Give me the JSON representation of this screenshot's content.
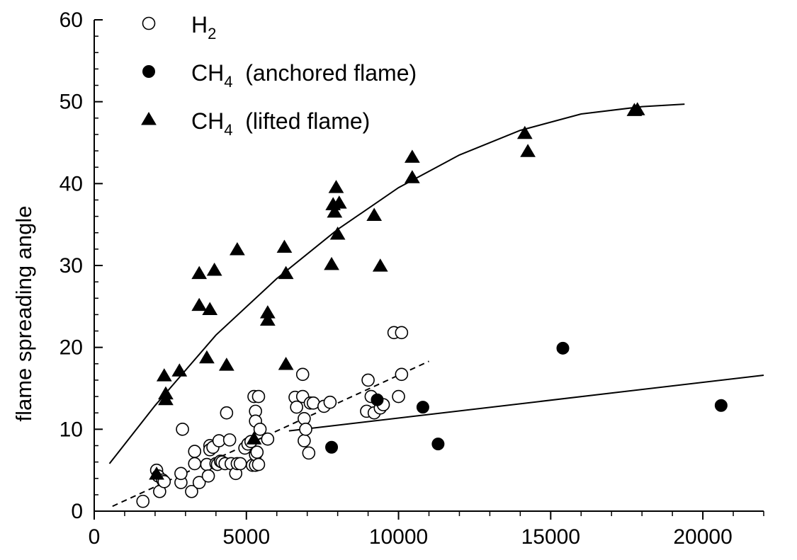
{
  "chart_data": {
    "type": "scatter",
    "title": "",
    "xlabel": "",
    "ylabel": "flame spreading angle",
    "xlim": [
      0,
      22000
    ],
    "ylim": [
      0,
      60
    ],
    "x_ticks": [
      0,
      5000,
      10000,
      15000,
      20000
    ],
    "y_ticks": [
      0,
      10,
      20,
      30,
      40,
      50,
      60
    ],
    "x_tick_labels": [
      "0",
      "5000",
      "10000",
      "15000",
      "20000"
    ],
    "y_tick_labels": [
      "0",
      "10",
      "20",
      "30",
      "40",
      "50",
      "60"
    ],
    "grid": false,
    "legend_position": "top-left",
    "legend": [
      {
        "main": "H",
        "sub": "2",
        "suffix": "",
        "marker": "open-circle"
      },
      {
        "main": "CH",
        "sub": "4",
        "suffix": " (anchored flame)",
        "marker": "filled-circle"
      },
      {
        "main": "CH",
        "sub": "4",
        "suffix": " (lifted flame)",
        "marker": "filled-triangle"
      }
    ],
    "series": [
      {
        "name": "H2",
        "marker": "open-circle",
        "points": [
          [
            1600,
            1.2
          ],
          [
            2050,
            5.0
          ],
          [
            2100,
            4.3
          ],
          [
            2150,
            2.4
          ],
          [
            2250,
            3.8
          ],
          [
            2300,
            3.6
          ],
          [
            2850,
            3.5
          ],
          [
            2850,
            4.6
          ],
          [
            2900,
            10.0
          ],
          [
            3200,
            2.4
          ],
          [
            3300,
            5.8
          ],
          [
            3300,
            7.3
          ],
          [
            3450,
            3.5
          ],
          [
            3700,
            5.7
          ],
          [
            3750,
            4.3
          ],
          [
            3800,
            8.0
          ],
          [
            3800,
            7.5
          ],
          [
            3900,
            7.8
          ],
          [
            4000,
            5.8
          ],
          [
            4050,
            5.7
          ],
          [
            4100,
            8.6
          ],
          [
            4150,
            6.1
          ],
          [
            4200,
            6.0
          ],
          [
            4300,
            5.8
          ],
          [
            4350,
            12.0
          ],
          [
            4450,
            8.7
          ],
          [
            4500,
            5.8
          ],
          [
            4650,
            4.6
          ],
          [
            4700,
            5.8
          ],
          [
            4800,
            5.8
          ],
          [
            4950,
            7.7
          ],
          [
            5050,
            8.2
          ],
          [
            5150,
            8.5
          ],
          [
            5200,
            5.6
          ],
          [
            5250,
            14.0
          ],
          [
            5300,
            5.6
          ],
          [
            5300,
            6.9
          ],
          [
            5300,
            12.2
          ],
          [
            5350,
            7.2
          ],
          [
            5300,
            11.0
          ],
          [
            5400,
            5.7
          ],
          [
            5400,
            14.0
          ],
          [
            5450,
            10.0
          ],
          [
            5700,
            8.8
          ],
          [
            6600,
            13.9
          ],
          [
            6650,
            12.7
          ],
          [
            6850,
            14.0
          ],
          [
            6850,
            16.7
          ],
          [
            6900,
            11.3
          ],
          [
            6900,
            8.6
          ],
          [
            6950,
            10.0
          ],
          [
            7050,
            7.1
          ],
          [
            7100,
            13.2
          ],
          [
            7200,
            13.2
          ],
          [
            7550,
            12.8
          ],
          [
            7750,
            13.3
          ],
          [
            8950,
            12.2
          ],
          [
            9000,
            16.0
          ],
          [
            9100,
            14.0
          ],
          [
            9200,
            12.0
          ],
          [
            9400,
            12.6
          ],
          [
            9500,
            13.0
          ],
          [
            9850,
            21.8
          ],
          [
            10000,
            14.0
          ],
          [
            10100,
            21.8
          ],
          [
            10100,
            16.7
          ]
        ]
      },
      {
        "name": "CH4 (anchored flame)",
        "marker": "filled-circle",
        "points": [
          [
            7800,
            7.8
          ],
          [
            9300,
            13.6
          ],
          [
            10800,
            12.7
          ],
          [
            11300,
            8.2
          ],
          [
            15400,
            19.9
          ],
          [
            20600,
            12.9
          ]
        ]
      },
      {
        "name": "CH4 (lifted flame)",
        "marker": "filled-triangle",
        "points": [
          [
            2050,
            4.5
          ],
          [
            2300,
            16.5
          ],
          [
            2350,
            14.3
          ],
          [
            2350,
            13.6
          ],
          [
            2800,
            17.1
          ],
          [
            3450,
            29.0
          ],
          [
            3450,
            25.1
          ],
          [
            3700,
            18.7
          ],
          [
            3800,
            24.6
          ],
          [
            3950,
            29.4
          ],
          [
            4350,
            17.8
          ],
          [
            4700,
            31.9
          ],
          [
            5250,
            8.8
          ],
          [
            5700,
            24.2
          ],
          [
            5700,
            23.3
          ],
          [
            6250,
            32.2
          ],
          [
            6300,
            29.0
          ],
          [
            6300,
            17.9
          ],
          [
            7800,
            30.1
          ],
          [
            7850,
            37.4
          ],
          [
            7900,
            36.5
          ],
          [
            7950,
            39.5
          ],
          [
            8000,
            33.8
          ],
          [
            8050,
            37.6
          ],
          [
            9200,
            36.1
          ],
          [
            9400,
            29.9
          ],
          [
            10450,
            43.2
          ],
          [
            10450,
            40.7
          ],
          [
            14150,
            46.1
          ],
          [
            14250,
            43.9
          ],
          [
            17750,
            48.9
          ],
          [
            17850,
            49.0
          ]
        ]
      }
    ],
    "fits": [
      {
        "series": "CH4 (lifted flame)",
        "style": "solid",
        "points": [
          [
            500,
            5.8
          ],
          [
            2000,
            12.9
          ],
          [
            4000,
            21.5
          ],
          [
            6000,
            28.4
          ],
          [
            8000,
            34.4
          ],
          [
            10000,
            39.5
          ],
          [
            12000,
            43.5
          ],
          [
            14000,
            46.5
          ],
          [
            16000,
            48.5
          ],
          [
            18000,
            49.4
          ],
          [
            19400,
            49.7
          ]
        ]
      },
      {
        "series": "H2",
        "style": "dashed",
        "points": [
          [
            600,
            0.6
          ],
          [
            11000,
            18.3
          ]
        ]
      },
      {
        "series": "CH4 (anchored flame)",
        "style": "solid",
        "points": [
          [
            6400,
            9.8
          ],
          [
            22000,
            16.6
          ]
        ]
      }
    ]
  }
}
